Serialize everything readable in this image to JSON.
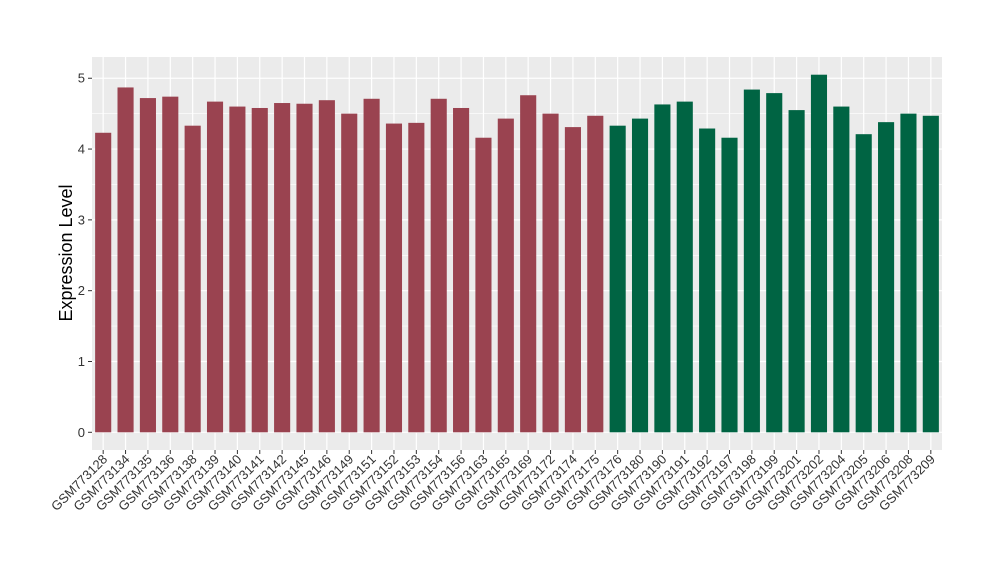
{
  "chart_data": {
    "type": "bar",
    "title": "",
    "xlabel": "",
    "ylabel": "Expression Level",
    "ylim": [
      -0.25,
      5.3
    ],
    "yticks": [
      0,
      1,
      2,
      3,
      4,
      5
    ],
    "grid": true,
    "legend": "none",
    "colors": {
      "group1": "#9a4350",
      "group2": "#006443",
      "panel": "#ebebeb",
      "grid": "#ffffff"
    },
    "categories": [
      "GSM773128",
      "GSM773134",
      "GSM773135",
      "GSM773136",
      "GSM773138",
      "GSM773139",
      "GSM773140",
      "GSM773141",
      "GSM773142",
      "GSM773145",
      "GSM773146",
      "GSM773149",
      "GSM773151",
      "GSM773152",
      "GSM773153",
      "GSM773154",
      "GSM773156",
      "GSM773163",
      "GSM773165",
      "GSM773169",
      "GSM773172",
      "GSM773174",
      "GSM773175",
      "GSM773176",
      "GSM773180",
      "GSM773190",
      "GSM773191",
      "GSM773192",
      "GSM773197",
      "GSM773198",
      "GSM773199",
      "GSM773201",
      "GSM773202",
      "GSM773204",
      "GSM773205",
      "GSM773206",
      "GSM773208",
      "GSM773209"
    ],
    "values": [
      4.23,
      4.87,
      4.72,
      4.74,
      4.33,
      4.67,
      4.6,
      4.58,
      4.65,
      4.64,
      4.69,
      4.5,
      4.71,
      4.36,
      4.37,
      4.71,
      4.58,
      4.16,
      4.43,
      4.76,
      4.5,
      4.31,
      4.47,
      4.33,
      4.43,
      4.63,
      4.67,
      4.29,
      4.16,
      4.84,
      4.79,
      4.55,
      5.05,
      4.6,
      4.21,
      4.38,
      4.5,
      4.47
    ],
    "groups": [
      1,
      1,
      1,
      1,
      1,
      1,
      1,
      1,
      1,
      1,
      1,
      1,
      1,
      1,
      1,
      1,
      1,
      1,
      1,
      1,
      1,
      1,
      1,
      2,
      2,
      2,
      2,
      2,
      2,
      2,
      2,
      2,
      2,
      2,
      2,
      2,
      2,
      2
    ]
  }
}
